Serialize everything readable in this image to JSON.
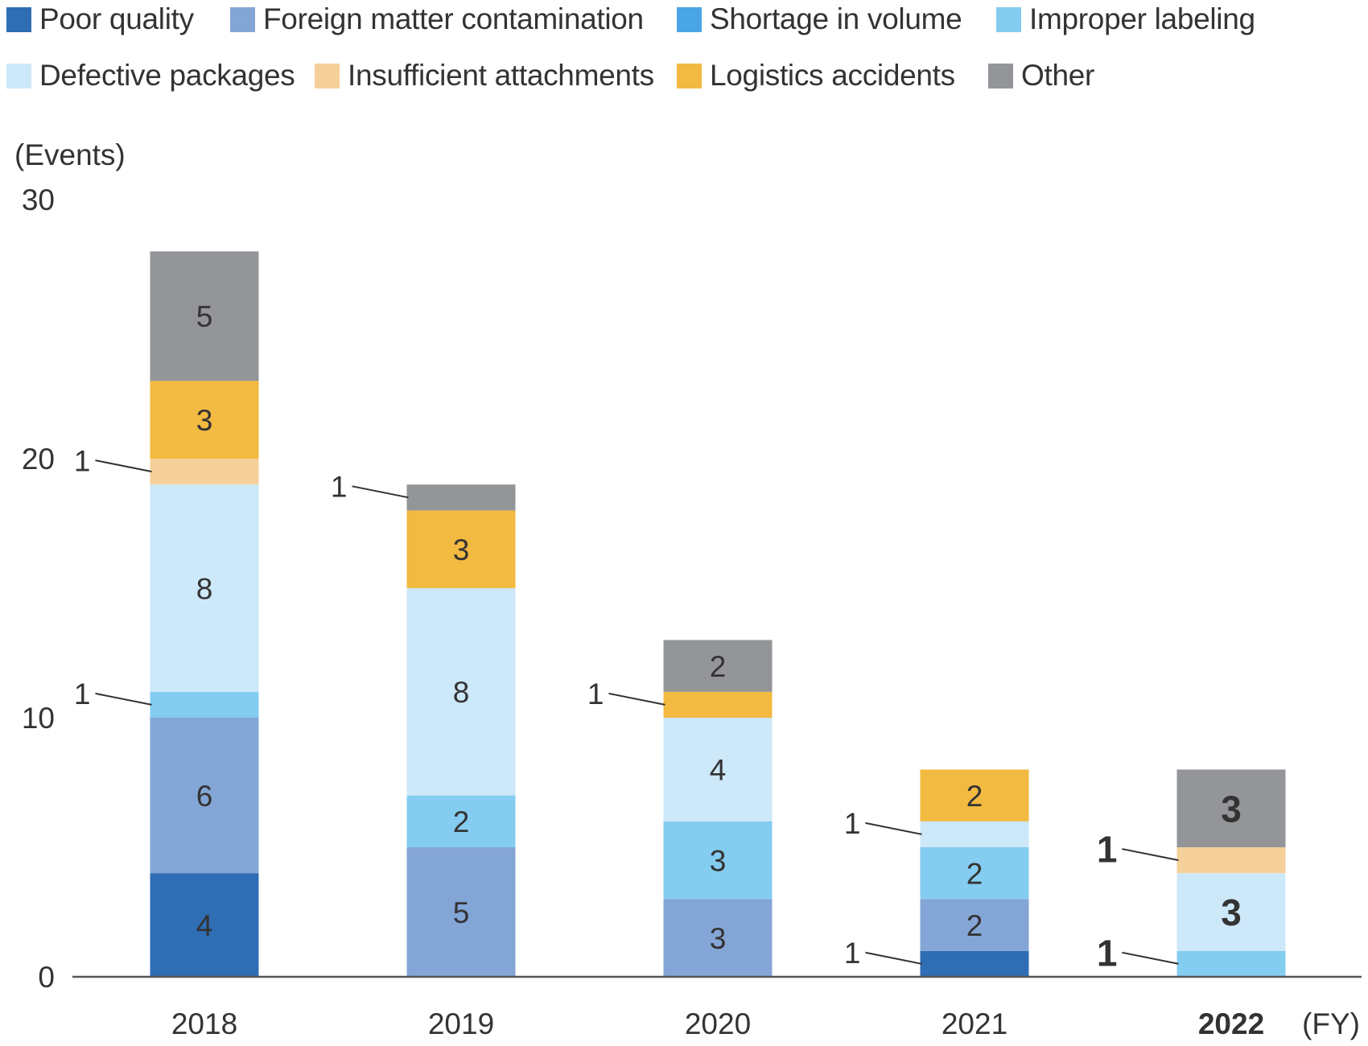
{
  "chart_data": {
    "type": "bar",
    "stacked": true,
    "ylabel": "(Events)",
    "xlabel": "(FY)",
    "ylim": [
      0,
      30
    ],
    "yticks": [
      "0",
      "10",
      "20",
      "30"
    ],
    "categories": [
      "2018",
      "2019",
      "2020",
      "2021",
      "2022"
    ],
    "highlight_category": "2022",
    "series": [
      {
        "name": "Poor quality",
        "color": "#2f6db5",
        "values": [
          4,
          0,
          0,
          1,
          0
        ]
      },
      {
        "name": "Foreign matter contamination",
        "color": "#84a6d6",
        "values": [
          6,
          5,
          3,
          2,
          0
        ]
      },
      {
        "name": "Shortage in volume",
        "color": "#49a5e3",
        "values": [
          0,
          0,
          0,
          0,
          0
        ]
      },
      {
        "name": "Improper labeling",
        "color": "#84ccf0",
        "values": [
          1,
          2,
          3,
          2,
          1
        ]
      },
      {
        "name": "Defective packages",
        "color": "#cde8f9",
        "values": [
          8,
          8,
          4,
          1,
          3
        ]
      },
      {
        "name": "Insufficient attachments",
        "color": "#f6d09a",
        "values": [
          1,
          0,
          0,
          0,
          1
        ]
      },
      {
        "name": "Logistics accidents",
        "color": "#f2ba40",
        "values": [
          3,
          3,
          1,
          2,
          0
        ]
      },
      {
        "name": "Other",
        "color": "#939598",
        "values": [
          5,
          1,
          2,
          0,
          3
        ]
      }
    ]
  }
}
